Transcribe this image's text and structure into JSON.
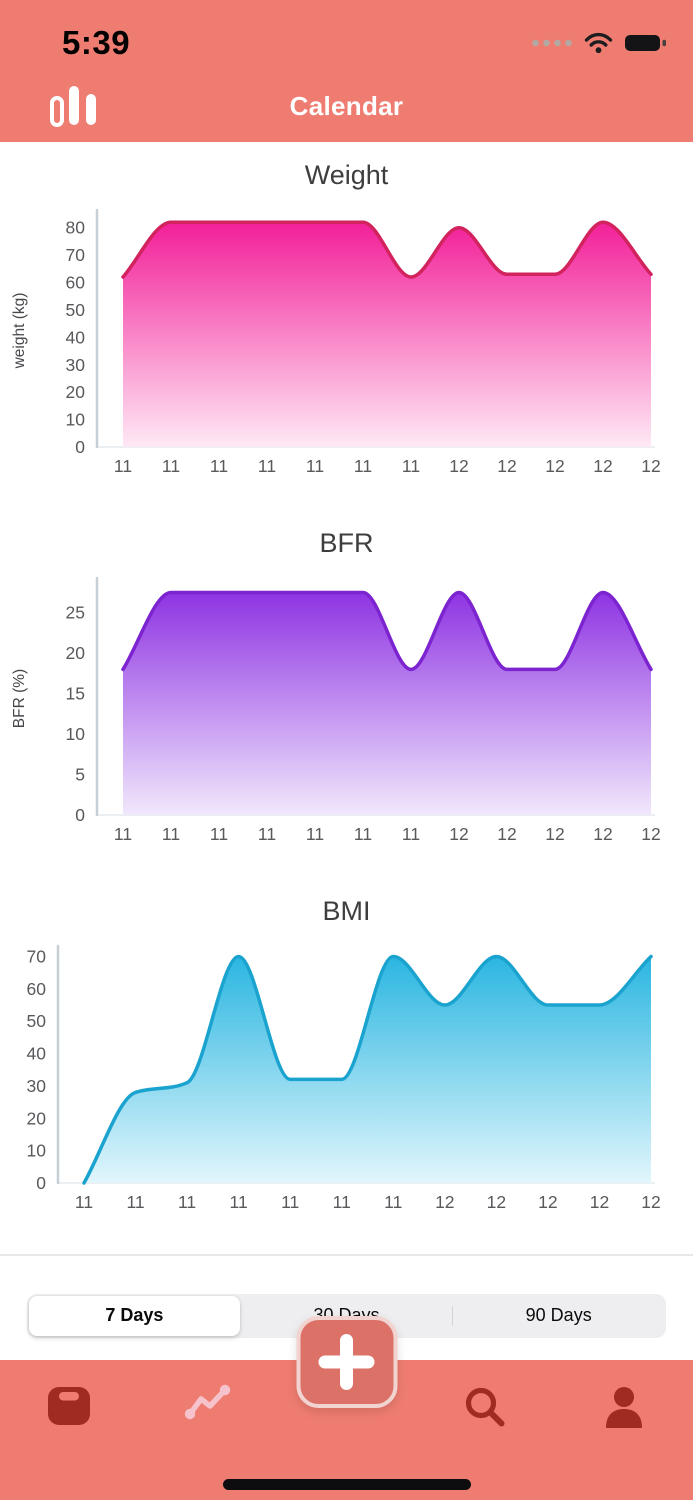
{
  "status_bar": {
    "time": "5:39",
    "icons": [
      "cellular-dots-icon",
      "wifi-icon",
      "battery-icon"
    ]
  },
  "header": {
    "title": "Calendar",
    "icon": "bar-chart-icon"
  },
  "chart_data": [
    {
      "type": "area",
      "title": "Weight",
      "ylabel": "weight (kg)",
      "x_labels": [
        "11",
        "11",
        "11",
        "11",
        "11",
        "11",
        "11",
        "12",
        "12",
        "12",
        "12",
        "12"
      ],
      "values": [
        62,
        82,
        82,
        82,
        82,
        82,
        62,
        80,
        63,
        63,
        82,
        63
      ],
      "ylim": [
        0,
        85
      ],
      "yticks": [
        0,
        10,
        20,
        30,
        40,
        50,
        60,
        70,
        80
      ],
      "grid": false,
      "legend": "none",
      "line_color": "#d2235f",
      "fill_top": "#f21895",
      "fill_bottom": "#ffe9f5"
    },
    {
      "type": "area",
      "title": "BFR",
      "ylabel": "BFR (%)",
      "x_labels": [
        "11",
        "11",
        "11",
        "11",
        "11",
        "11",
        "11",
        "12",
        "12",
        "12",
        "12",
        "12"
      ],
      "values": [
        18,
        27.5,
        27.5,
        27.5,
        27.5,
        27.5,
        18,
        27.5,
        18,
        18,
        27.5,
        18
      ],
      "ylim": [
        0,
        28.8
      ],
      "yticks": [
        0,
        5,
        10,
        15,
        20,
        25
      ],
      "grid": false,
      "legend": "none",
      "line_color": "#7b24cf",
      "fill_top": "#8a2be2",
      "fill_bottom": "#f1e8fc"
    },
    {
      "type": "area",
      "title": "BMI",
      "ylabel": "",
      "x_labels": [
        "11",
        "11",
        "11",
        "11",
        "11",
        "11",
        "11",
        "12",
        "12",
        "12",
        "12",
        "12"
      ],
      "values": [
        0,
        28,
        31,
        70,
        32,
        32,
        70,
        55,
        70,
        55,
        55,
        70
      ],
      "ylim": [
        0,
        72
      ],
      "yticks": [
        0,
        10,
        20,
        30,
        40,
        50,
        60,
        70
      ],
      "grid": false,
      "legend": "none",
      "line_color": "#1ba3cf",
      "fill_top": "#25b4e0",
      "fill_bottom": "#e2f6fc"
    }
  ],
  "time_range": {
    "options": [
      {
        "label": "7 Days",
        "selected": true
      },
      {
        "label": "30 Days",
        "selected": false
      },
      {
        "label": "90 Days",
        "selected": false
      }
    ]
  },
  "fab": {
    "icon": "plus-icon"
  },
  "tab_bar": {
    "items": [
      "weight-scale-icon",
      "trends-icon",
      "add-entry-button",
      "search-icon",
      "profile-icon"
    ]
  },
  "colors": {
    "theme": "#ef7c71",
    "tab_icon": "#a02b22",
    "tab_icon_light": "#f6c3cc",
    "fab_bg": "#dc7168",
    "fab_border": "#f1d3cf",
    "segment_bg": "#eeeef0",
    "segment_selected_bg": "#ffffff"
  }
}
